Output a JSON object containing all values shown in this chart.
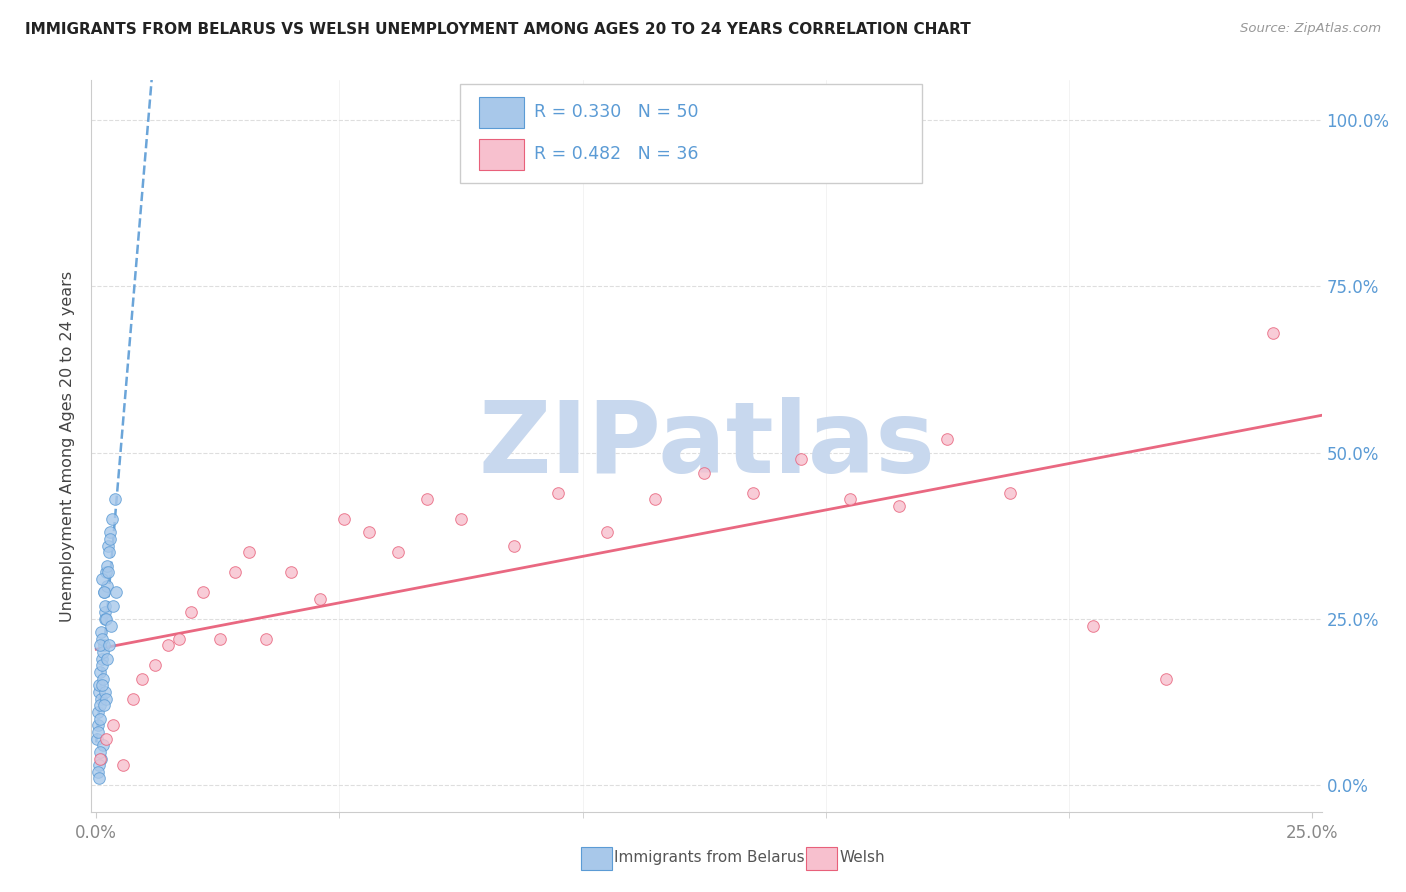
{
  "title": "IMMIGRANTS FROM BELARUS VS WELSH UNEMPLOYMENT AMONG AGES 20 TO 24 YEARS CORRELATION CHART",
  "source": "Source: ZipAtlas.com",
  "ylabel": "Unemployment Among Ages 20 to 24 years",
  "xlim": [
    -0.001,
    0.252
  ],
  "ylim": [
    -0.04,
    1.06
  ],
  "xtick_positions": [
    0.0,
    0.25
  ],
  "xtick_labels": [
    "0.0%",
    "25.0%"
  ],
  "ytick_positions": [
    0.0,
    0.25,
    0.5,
    0.75,
    1.0
  ],
  "ytick_labels_right": [
    "0.0%",
    "25.0%",
    "50.0%",
    "75.0%",
    "100.0%"
  ],
  "legend_label1": "Immigrants from Belarus",
  "legend_label2": "Welsh",
  "r1": 0.33,
  "n1": 50,
  "r2": 0.482,
  "n2": 36,
  "color_blue_fill": "#A8C8EA",
  "color_blue_edge": "#5B9BD5",
  "color_pink_fill": "#F7C0CE",
  "color_pink_edge": "#E8607A",
  "color_blue_line": "#5B9BD5",
  "color_pink_line": "#E8607A",
  "watermark_color": "#C8D8EE",
  "watermark_text": "ZIPatlas",
  "r_n_color": "#5B9BD5",
  "grid_color": "#DEDEDE",
  "title_color": "#222222",
  "source_color": "#999999",
  "axis_label_color": "#444444",
  "tick_color": "#888888",
  "belarus_x": [
    0.0005,
    0.0008,
    0.0003,
    0.0012,
    0.0006,
    0.0015,
    0.0009,
    0.0004,
    0.0011,
    0.0007,
    0.0002,
    0.001,
    0.0018,
    0.0013,
    0.0016,
    0.002,
    0.0014,
    0.0008,
    0.0003,
    0.0017,
    0.0022,
    0.0019,
    0.0025,
    0.0021,
    0.0012,
    0.0007,
    0.0016,
    0.0011,
    0.0028,
    0.0023,
    0.0024,
    0.0027,
    0.0032,
    0.0029,
    0.0038,
    0.0009,
    0.0006,
    0.0004,
    0.0013,
    0.0007,
    0.0018,
    0.0011,
    0.002,
    0.0015,
    0.0023,
    0.0026,
    0.003,
    0.0035,
    0.004,
    0.0006
  ],
  "belarus_y": [
    0.14,
    0.17,
    0.11,
    0.19,
    0.15,
    0.21,
    0.13,
    0.09,
    0.18,
    0.12,
    0.07,
    0.23,
    0.26,
    0.16,
    0.29,
    0.32,
    0.2,
    0.1,
    0.08,
    0.25,
    0.3,
    0.27,
    0.36,
    0.25,
    0.22,
    0.21,
    0.29,
    0.31,
    0.38,
    0.33,
    0.32,
    0.35,
    0.4,
    0.37,
    0.43,
    0.04,
    0.03,
    0.02,
    0.06,
    0.05,
    0.14,
    0.15,
    0.13,
    0.12,
    0.19,
    0.21,
    0.24,
    0.27,
    0.29,
    0.01
  ],
  "welsh_x": [
    0.0008,
    0.002,
    0.0035,
    0.0055,
    0.0075,
    0.0095,
    0.012,
    0.0148,
    0.017,
    0.0195,
    0.022,
    0.0255,
    0.0285,
    0.0315,
    0.035,
    0.04,
    0.046,
    0.051,
    0.056,
    0.062,
    0.068,
    0.075,
    0.086,
    0.095,
    0.105,
    0.115,
    0.125,
    0.135,
    0.145,
    0.155,
    0.165,
    0.175,
    0.188,
    0.205,
    0.22,
    0.242
  ],
  "welsh_y": [
    0.04,
    0.07,
    0.09,
    0.03,
    0.13,
    0.16,
    0.18,
    0.21,
    0.22,
    0.26,
    0.29,
    0.22,
    0.32,
    0.35,
    0.22,
    0.32,
    0.28,
    0.4,
    0.38,
    0.35,
    0.43,
    0.4,
    0.36,
    0.44,
    0.38,
    0.43,
    0.47,
    0.44,
    0.49,
    0.43,
    0.42,
    0.52,
    0.44,
    0.24,
    0.16,
    0.68
  ]
}
